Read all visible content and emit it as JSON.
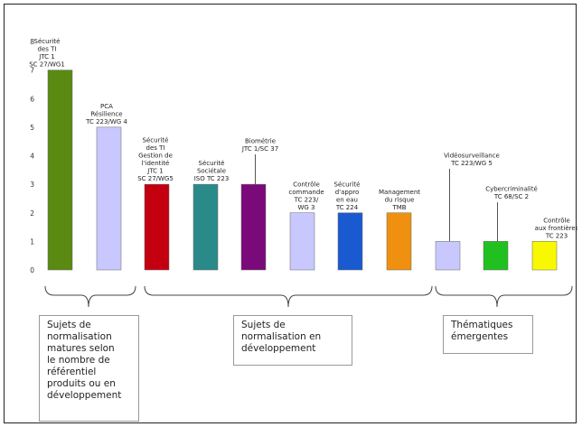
{
  "chart_data": {
    "type": "bar",
    "ylim": [
      0,
      8
    ],
    "yticks": [
      "0",
      "1",
      "2",
      "3",
      "4",
      "5",
      "6",
      "7",
      "8"
    ],
    "grid": false,
    "legend": "none",
    "categories": [
      "Sécurité\ndes TI\nJTC 1\nSC 27/WG1",
      "PCA\nRésilience\nTC 223/WG 4",
      "Sécurité\ndes TI\nGestion de\nl'identité\nJTC 1\nSC 27/WG5",
      "Sécurité\nSociétale\nISO TC 223",
      "Biométrie\nJTC 1/SC 37",
      "Contrôle\ncommande\nTC 223/\nWG 3",
      "Sécurité\nd'appro\nen eau\nTC 224",
      "Management\ndu risque\nTMB",
      "Vidéosurveillance\nTC 223/WG 5",
      "Cybercriminalité\nTC 68/SC 2",
      "Contrôle\naux frontières\nTC 223"
    ],
    "values": [
      7,
      5,
      3,
      3,
      3,
      2,
      2,
      2,
      1,
      1,
      1
    ],
    "colors": [
      "#5a8a12",
      "#c8c8ff",
      "#c40010",
      "#2a8a8a",
      "#7a0a7a",
      "#c8c8ff",
      "#1a5ad0",
      "#f09010",
      "#c8c8ff",
      "#20c020",
      "#f8f800"
    ],
    "groups": [
      {
        "label": "Sujets de\nnormalisation\nmatures selon\nle nombre de\nréférentiel\nproduits ou en\ndéveloppement"
      },
      {
        "label": "Sujets de\nnormalisation en\ndéveloppement"
      },
      {
        "label": "Thématiques\némergentes"
      }
    ]
  }
}
